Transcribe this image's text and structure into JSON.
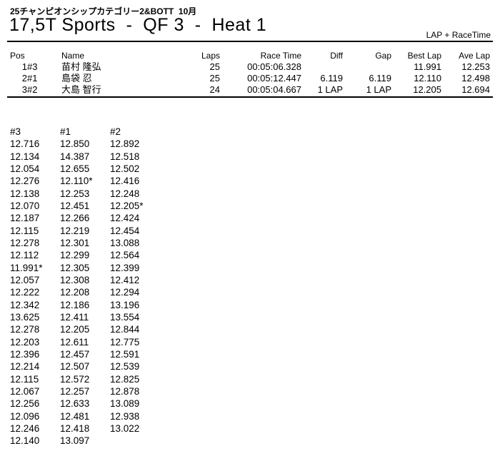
{
  "header": {
    "subtitle": "25チャンピオンシップカテゴリー2&BOTT  10月",
    "title": "17,5T Sports  -  QF 3  -  Heat 1",
    "timing_mode": "LAP + RaceTime"
  },
  "results": {
    "columns": [
      "Pos",
      "Name",
      "Laps",
      "Race Time",
      "Diff",
      "Gap",
      "Best Lap",
      "Ave Lap"
    ],
    "rows": [
      {
        "pos": "1",
        "car": "#3",
        "name": "苗村 隆弘",
        "laps": "25",
        "race_time": "00:05:06.328",
        "diff": "",
        "gap": "",
        "best_lap": "11.991",
        "ave_lap": "12.253"
      },
      {
        "pos": "2",
        "car": "#1",
        "name": "島袋 忍",
        "laps": "25",
        "race_time": "00:05:12.447",
        "diff": "6.119",
        "gap": "6.119",
        "best_lap": "12.110",
        "ave_lap": "12.498"
      },
      {
        "pos": "3",
        "car": "#2",
        "name": "大島 智行",
        "laps": "24",
        "race_time": "00:05:04.667",
        "diff": "1 LAP",
        "gap": "1 LAP",
        "best_lap": "12.205",
        "ave_lap": "12.694"
      }
    ]
  },
  "lap_times": {
    "columns": [
      "#3",
      "#1",
      "#2"
    ],
    "rows": [
      [
        "12.716",
        "12.850",
        "12.892"
      ],
      [
        "12.134",
        "14.387",
        "12.518"
      ],
      [
        "12.054",
        "12.655",
        "12.502"
      ],
      [
        "12.276",
        "12.110*",
        "12.416"
      ],
      [
        "12.138",
        "12.253",
        "12.248"
      ],
      [
        "12.070",
        "12.451",
        "12.205*"
      ],
      [
        "12.187",
        "12.266",
        "12.424"
      ],
      [
        "12.115",
        "12.219",
        "12.454"
      ],
      [
        "12.278",
        "12.301",
        "13.088"
      ],
      [
        "12.112",
        "12.299",
        "12.564"
      ],
      [
        "11.991*",
        "12.305",
        "12.399"
      ],
      [
        "12.057",
        "12.308",
        "12.412"
      ],
      [
        "12.222",
        "12.208",
        "12.294"
      ],
      [
        "12.342",
        "12.186",
        "13.196"
      ],
      [
        "13.625",
        "12.411",
        "13.554"
      ],
      [
        "12.278",
        "12.205",
        "12.844"
      ],
      [
        "12.203",
        "12.611",
        "12.775"
      ],
      [
        "12.396",
        "12.457",
        "12.591"
      ],
      [
        "12.214",
        "12.507",
        "12.539"
      ],
      [
        "12.115",
        "12.572",
        "12.825"
      ],
      [
        "12.067",
        "12.257",
        "12.878"
      ],
      [
        "12.256",
        "12.633",
        "13.089"
      ],
      [
        "12.096",
        "12.481",
        "12.938"
      ],
      [
        "12.246",
        "12.418",
        "13.022"
      ],
      [
        "12.140",
        "13.097"
      ]
    ]
  }
}
